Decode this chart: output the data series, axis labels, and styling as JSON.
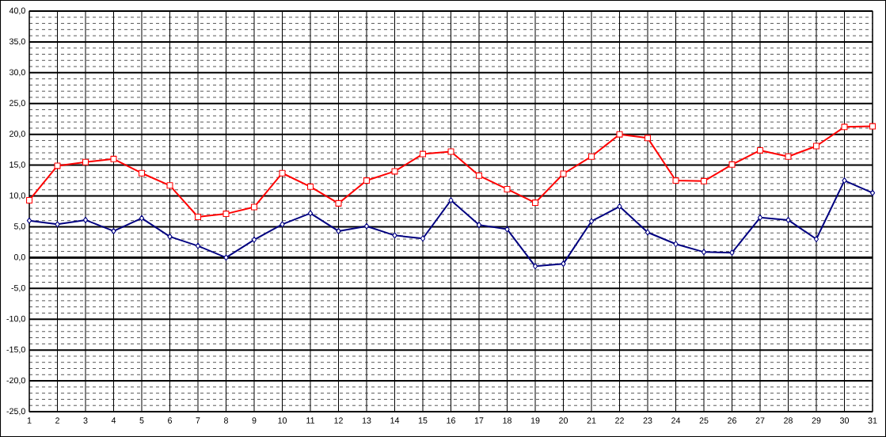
{
  "chart_data": {
    "type": "line",
    "x": [
      1,
      2,
      3,
      4,
      5,
      6,
      7,
      8,
      9,
      10,
      11,
      12,
      13,
      14,
      15,
      16,
      17,
      18,
      19,
      20,
      21,
      22,
      23,
      24,
      25,
      26,
      27,
      28,
      29,
      30,
      31
    ],
    "series": [
      {
        "color": "#ff0000",
        "marker": "square",
        "values": [
          9.3,
          14.9,
          15.5,
          16.0,
          13.7,
          11.7,
          6.6,
          7.1,
          8.2,
          13.7,
          11.5,
          8.8,
          12.5,
          14.0,
          16.8,
          17.2,
          13.3,
          11.1,
          8.9,
          13.6,
          16.4,
          20.0,
          19.4,
          12.5,
          12.4,
          15.1,
          17.4,
          16.4,
          18.1,
          21.2,
          21.3
        ]
      },
      {
        "color": "#000080",
        "marker": "diamond",
        "values": [
          6.0,
          5.4,
          6.1,
          4.3,
          6.4,
          3.4,
          1.9,
          0.0,
          2.9,
          5.4,
          7.2,
          4.3,
          5.1,
          3.6,
          3.1,
          9.3,
          5.3,
          4.6,
          -1.4,
          -1.0,
          5.9,
          8.3,
          4.1,
          2.2,
          0.9,
          0.8,
          6.5,
          6.1,
          3.0,
          12.5,
          10.5
        ]
      }
    ],
    "xlim": [
      1,
      31
    ],
    "xticks": [
      1,
      2,
      3,
      4,
      5,
      6,
      7,
      8,
      9,
      10,
      11,
      12,
      13,
      14,
      15,
      16,
      17,
      18,
      19,
      20,
      21,
      22,
      23,
      24,
      25,
      26,
      27,
      28,
      29,
      30,
      31
    ],
    "ylim": [
      -25,
      40
    ],
    "yticks": [
      {
        "value": -25,
        "label": "-25,0"
      },
      {
        "value": -20,
        "label": "-20,0"
      },
      {
        "value": -15,
        "label": "-15,0"
      },
      {
        "value": -10,
        "label": "-10,0"
      },
      {
        "value": -5,
        "label": "-5,0"
      },
      {
        "value": 0,
        "label": "0,0"
      },
      {
        "value": 5,
        "label": "5,0"
      },
      {
        "value": 10,
        "label": "10,0"
      },
      {
        "value": 15,
        "label": "15,0"
      },
      {
        "value": 20,
        "label": "20,0"
      },
      {
        "value": 25,
        "label": "25,0"
      },
      {
        "value": 30,
        "label": "30,0"
      },
      {
        "value": 35,
        "label": "35,0"
      },
      {
        "value": 40,
        "label": "40,0"
      }
    ],
    "ref_lines": [
      {
        "axis": "y",
        "value": 0
      }
    ],
    "grid": true,
    "line_style": "solid"
  }
}
